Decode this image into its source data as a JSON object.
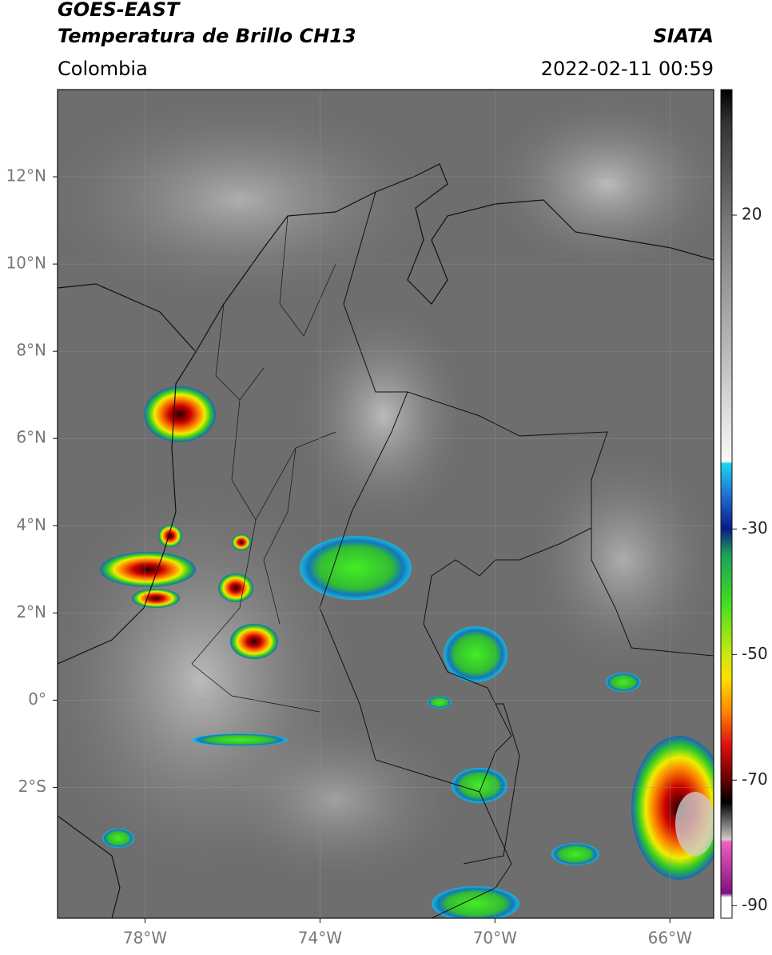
{
  "chart_data": {
    "type": "map",
    "title": "GOES-EAST",
    "subtitle": "Temperatura de Brillo CH13",
    "source": "SIATA",
    "region": "Colombia",
    "datetime": "2022-02-11 00:59",
    "xlim": [
      -80,
      -65
    ],
    "ylim": [
      -5,
      14
    ],
    "xticks": [
      {
        "value": -78,
        "label": "78°W"
      },
      {
        "value": -74,
        "label": "74°W"
      },
      {
        "value": -70,
        "label": "70°W"
      },
      {
        "value": -66,
        "label": "66°W"
      }
    ],
    "yticks": [
      {
        "value": 12,
        "label": "12°N"
      },
      {
        "value": 10,
        "label": "10°N"
      },
      {
        "value": 8,
        "label": "8°N"
      },
      {
        "value": 6,
        "label": "6°N"
      },
      {
        "value": 4,
        "label": "4°N"
      },
      {
        "value": 2,
        "label": "2°N"
      },
      {
        "value": 0,
        "label": "0°"
      },
      {
        "value": -2,
        "label": "2°S"
      }
    ],
    "grid": true,
    "colorbar": {
      "lim": [
        -92,
        40
      ],
      "ticks": [
        20,
        -30,
        -50,
        -70,
        -90
      ]
    }
  }
}
